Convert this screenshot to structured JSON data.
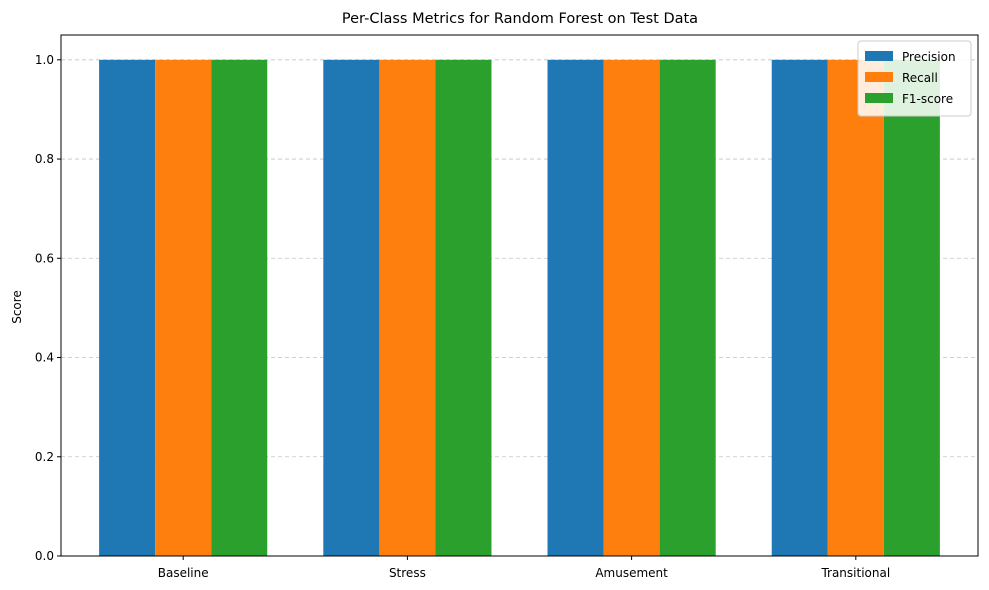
{
  "chart_data": {
    "type": "bar",
    "title": "Per-Class Metrics for Random Forest on Test Data",
    "xlabel": "",
    "ylabel": "Score",
    "categories": [
      "Baseline",
      "Stress",
      "Amusement",
      "Transitional"
    ],
    "series": [
      {
        "name": "Precision",
        "color": "#1f77b4",
        "values": [
          1.0,
          1.0,
          1.0,
          1.0
        ]
      },
      {
        "name": "Recall",
        "color": "#ff7f0e",
        "values": [
          1.0,
          1.0,
          1.0,
          1.0
        ]
      },
      {
        "name": "F1-score",
        "color": "#2ca02c",
        "values": [
          1.0,
          1.0,
          1.0,
          1.0
        ]
      }
    ],
    "ylim": [
      0,
      1.05
    ],
    "yticks": [
      "0.0",
      "0.2",
      "0.4",
      "0.6",
      "0.8",
      "1.0"
    ],
    "grid": "y-dashed",
    "legend_position": "top-right"
  }
}
